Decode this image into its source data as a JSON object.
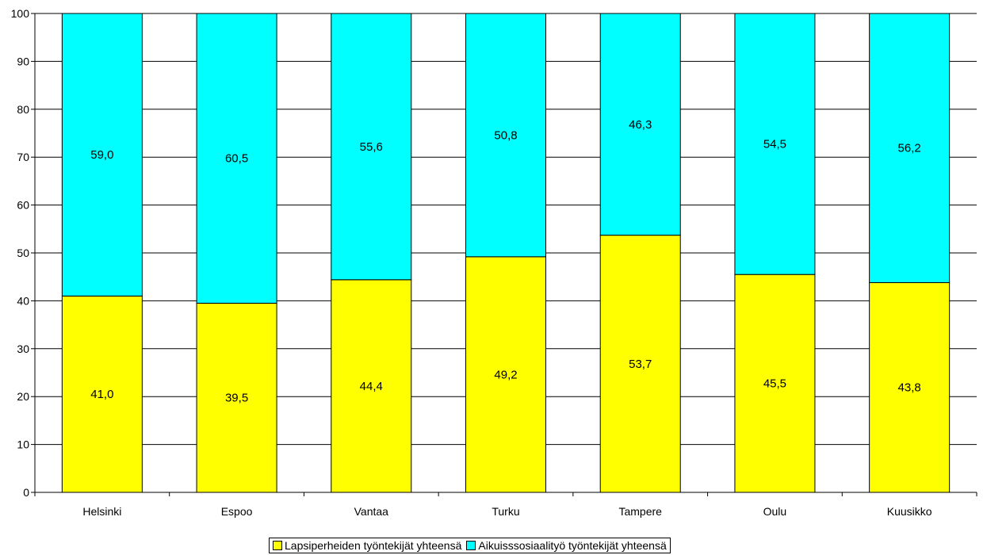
{
  "chart_data": {
    "type": "bar",
    "stacked": true,
    "categories": [
      "Helsinki",
      "Espoo",
      "Vantaa",
      "Turku",
      "Tampere",
      "Oulu",
      "Kuusikko"
    ],
    "series": [
      {
        "name": "Lapsiperheiden työntekijät yhteensä",
        "color": "#ffff00",
        "values": [
          41.0,
          39.5,
          44.4,
          49.2,
          53.7,
          45.5,
          43.8
        ],
        "labels": [
          "41,0",
          "39,5",
          "44,4",
          "49,2",
          "53,7",
          "45,5",
          "43,8"
        ]
      },
      {
        "name": "Aikuisssosiaalityö työntekijät yhteensä",
        "color": "#00ffff",
        "values": [
          59.0,
          60.5,
          55.6,
          50.8,
          46.3,
          54.5,
          56.2
        ],
        "labels": [
          "59,0",
          "60,5",
          "55,6",
          "50,8",
          "46,3",
          "54,5",
          "56,2"
        ]
      }
    ],
    "yticks": [
      "0",
      "10",
      "20",
      "30",
      "40",
      "50",
      "60",
      "70",
      "80",
      "90",
      "100"
    ],
    "ylim": [
      0,
      100
    ],
    "grid": true,
    "legend": "bottom"
  }
}
